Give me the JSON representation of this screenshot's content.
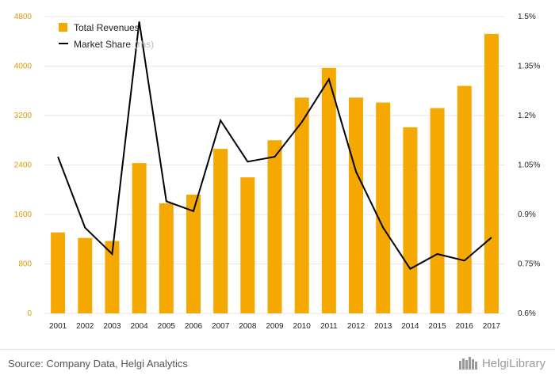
{
  "chart_data": {
    "type": "bar+line",
    "categories": [
      "2001",
      "2002",
      "2003",
      "2004",
      "2005",
      "2006",
      "2007",
      "2008",
      "2009",
      "2010",
      "2011",
      "2012",
      "2013",
      "2014",
      "2015",
      "2016",
      "2017"
    ],
    "series": [
      {
        "name": "Total Revenues",
        "type": "bar",
        "axis": "left",
        "values": [
          1310,
          1220,
          1170,
          2430,
          1780,
          1920,
          2660,
          2200,
          2800,
          3490,
          3970,
          3490,
          3410,
          3010,
          3320,
          3680,
          4520
        ]
      },
      {
        "name": "Market Share",
        "name_suffix": "(rhs)",
        "type": "line",
        "axis": "right",
        "values": [
          1.075,
          0.86,
          0.78,
          1.485,
          0.94,
          0.91,
          1.185,
          1.06,
          1.075,
          1.18,
          1.31,
          1.03,
          0.86,
          0.735,
          0.78,
          0.76,
          0.83
        ]
      }
    ],
    "yleft": {
      "min": 0,
      "max": 4800,
      "ticks": [
        "0",
        "800",
        "1600",
        "2400",
        "3200",
        "4000",
        "4800"
      ]
    },
    "yright": {
      "min": 0.6,
      "max": 1.5,
      "ticks": [
        "0.6%",
        "0.75%",
        "0.9%",
        "1.05%",
        "1.2%",
        "1.35%",
        "1.5%"
      ]
    },
    "legend_position": "top-left",
    "grid": "horizontal",
    "colors": {
      "bar": "#f5a800",
      "line": "#000000",
      "grid": "#e6e6e6",
      "left_tick": "#e09a00"
    }
  },
  "footer": {
    "source": "Source: Company Data, Helgi Analytics",
    "brand": "HelgiLibrary"
  }
}
